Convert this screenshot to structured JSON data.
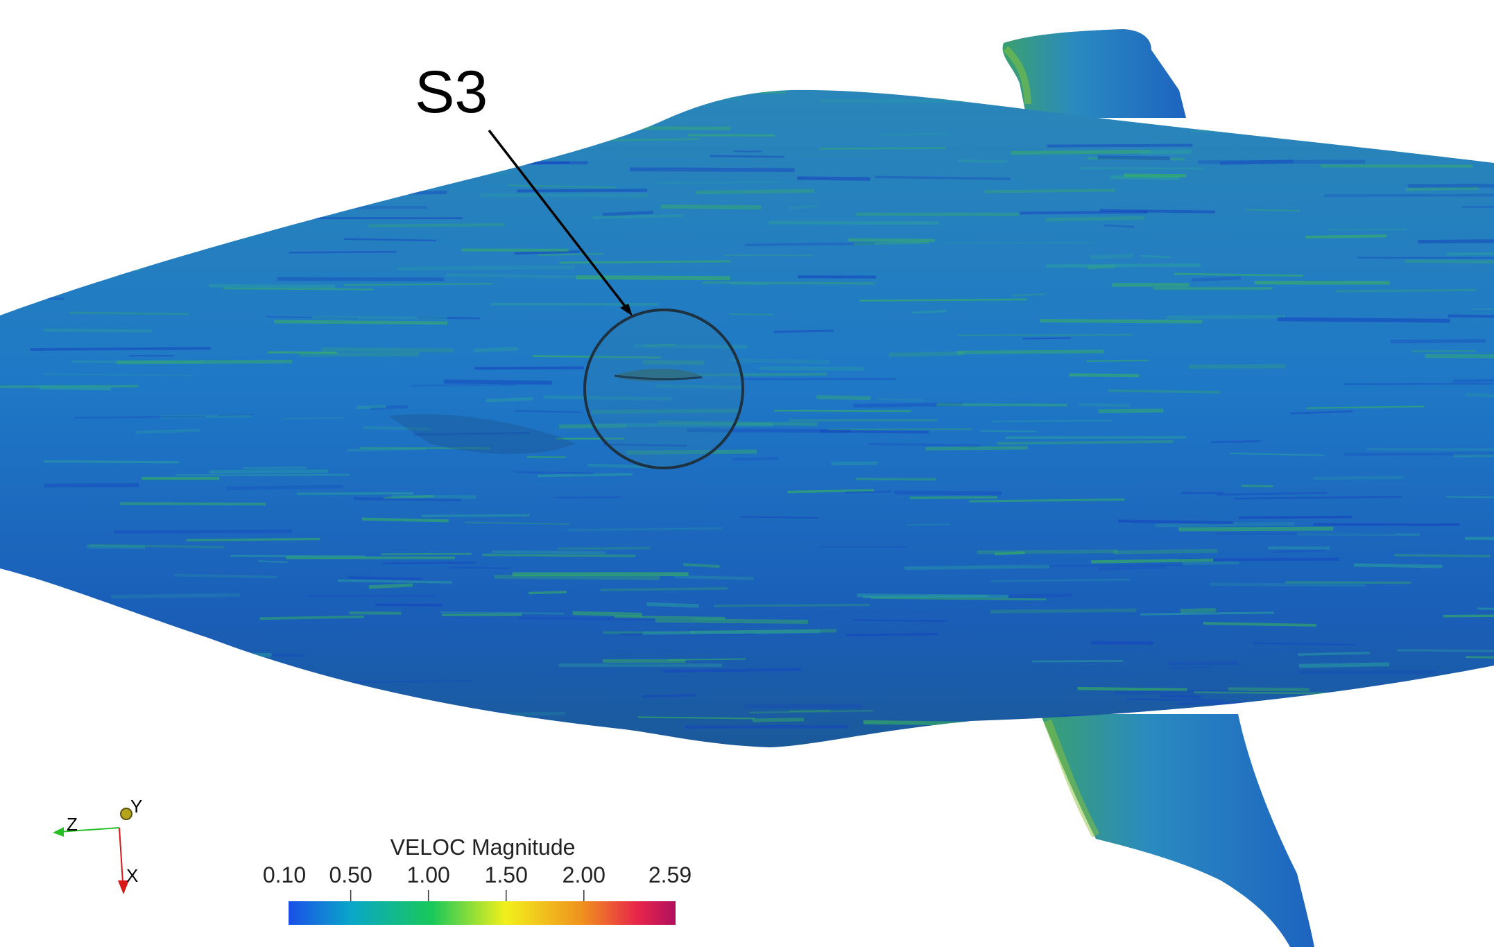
{
  "annotation": {
    "label": "S3"
  },
  "colorbar": {
    "title": "VELOC Magnitude",
    "ticks": [
      "0.10",
      "0.50",
      "1.00",
      "1.50",
      "2.00",
      "2.59"
    ],
    "tick_values": [
      0.1,
      0.5,
      1.0,
      1.5,
      2.0,
      2.59
    ],
    "range": [
      0.1,
      2.59
    ],
    "colors": [
      "#1a4fe8",
      "#0aa6c8",
      "#18c85a",
      "#f2f01c",
      "#f0901e",
      "#e8264a",
      "#b0105e"
    ]
  },
  "axes": {
    "x": "X",
    "y": "Y",
    "z": "Z"
  },
  "body_colors": {
    "base": "#1f74c4",
    "streak_green": "#39b85a",
    "streak_blue": "#1545c0"
  }
}
